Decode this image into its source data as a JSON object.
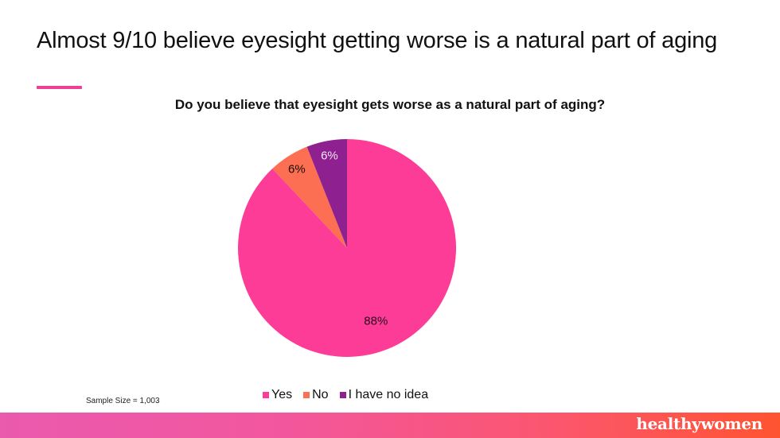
{
  "slide": {
    "title": "Almost 9/10 believe eyesight getting worse is a natural part of aging",
    "accent_color": "#ee3f94",
    "sample_size": "Sample Size = 1,003",
    "brand": "healthywomen"
  },
  "chart_data": {
    "type": "pie",
    "title": "Do you believe that eyesight gets worse as a natural part of aging?",
    "categories": [
      "Yes",
      "No",
      "I have no idea"
    ],
    "values": [
      88,
      6,
      6
    ],
    "labels": [
      "88%",
      "6%",
      "6%"
    ],
    "colors": [
      "#fc3c97",
      "#fc6f52",
      "#8e2090"
    ],
    "label_colors": [
      "#2a0a1e",
      "#1a0a05",
      "#f2e6f2"
    ],
    "start_angle_deg": 0,
    "direction": "clockwise",
    "legend_position": "bottom"
  }
}
